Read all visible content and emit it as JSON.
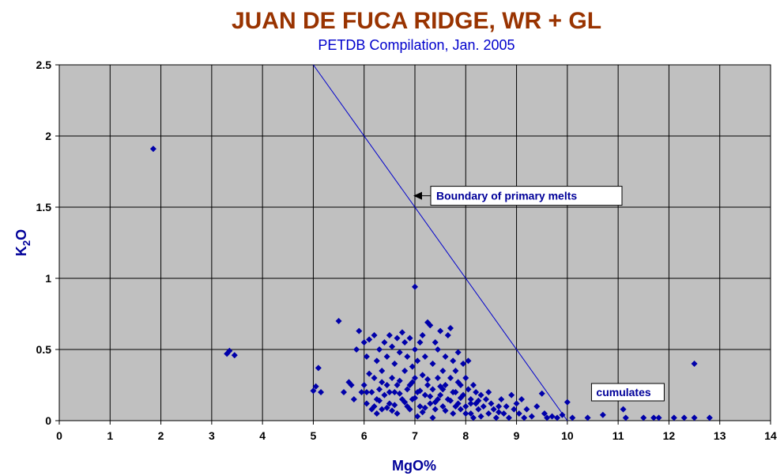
{
  "chart_data": {
    "type": "scatter",
    "title": "JUAN DE FUCA RIDGE, WR + GL",
    "subtitle": "PETDB Compilation, Jan. 2005",
    "xlabel": "MgO%",
    "ylabel_main": "K",
    "ylabel_sub": "2",
    "ylabel_tail": "O",
    "xlim": [
      0,
      14
    ],
    "ylim": [
      0,
      2.5
    ],
    "xticks": [
      "0",
      "1",
      "2",
      "3",
      "4",
      "5",
      "6",
      "7",
      "8",
      "9",
      "10",
      "11",
      "12",
      "13",
      "14"
    ],
    "yticks": [
      "0",
      "0.5",
      "1",
      "1.5",
      "2",
      "2.5"
    ],
    "grid": true,
    "colors": {
      "plot_bg": "#c0c0c0",
      "marker": "#0000aa",
      "line": "#0000cc",
      "title": "#993300"
    },
    "boundary_line": {
      "x": [
        5,
        10
      ],
      "y": [
        2.5,
        0
      ]
    },
    "annotations": [
      {
        "text": "Boundary of primary melts",
        "x": 7.0,
        "y": 1.58,
        "arrow": true
      },
      {
        "text": "cumulates",
        "x": 10.6,
        "y": 0.2,
        "arrow": false
      }
    ],
    "series": [
      {
        "points": [
          [
            1.85,
            1.91
          ],
          [
            3.3,
            0.47
          ],
          [
            3.35,
            0.49
          ],
          [
            3.45,
            0.46
          ],
          [
            5.0,
            0.21
          ],
          [
            5.05,
            0.24
          ],
          [
            5.1,
            0.37
          ],
          [
            5.15,
            0.2
          ],
          [
            5.5,
            0.7
          ],
          [
            5.6,
            0.2
          ],
          [
            5.7,
            0.27
          ],
          [
            5.75,
            0.25
          ],
          [
            5.8,
            0.15
          ],
          [
            5.85,
            0.5
          ],
          [
            5.9,
            0.63
          ],
          [
            5.95,
            0.2
          ],
          [
            6.0,
            0.55
          ],
          [
            6.0,
            0.25
          ],
          [
            6.05,
            0.12
          ],
          [
            6.05,
            0.45
          ],
          [
            6.1,
            0.57
          ],
          [
            6.1,
            0.33
          ],
          [
            6.15,
            0.2
          ],
          [
            6.2,
            0.6
          ],
          [
            6.2,
            0.3
          ],
          [
            6.25,
            0.42
          ],
          [
            6.25,
            0.15
          ],
          [
            6.3,
            0.5
          ],
          [
            6.3,
            0.22
          ],
          [
            6.35,
            0.35
          ],
          [
            6.35,
            0.08
          ],
          [
            6.4,
            0.55
          ],
          [
            6.4,
            0.18
          ],
          [
            6.45,
            0.45
          ],
          [
            6.45,
            0.25
          ],
          [
            6.5,
            0.6
          ],
          [
            6.5,
            0.12
          ],
          [
            6.55,
            0.3
          ],
          [
            6.55,
            0.52
          ],
          [
            6.6,
            0.2
          ],
          [
            6.6,
            0.4
          ],
          [
            6.65,
            0.58
          ],
          [
            6.65,
            0.05
          ],
          [
            6.7,
            0.28
          ],
          [
            6.7,
            0.48
          ],
          [
            6.75,
            0.15
          ],
          [
            6.75,
            0.62
          ],
          [
            6.8,
            0.35
          ],
          [
            6.8,
            0.55
          ],
          [
            6.85,
            0.1
          ],
          [
            6.85,
            0.45
          ],
          [
            6.9,
            0.25
          ],
          [
            6.9,
            0.58
          ],
          [
            6.95,
            0.38
          ],
          [
            6.95,
            0.15
          ],
          [
            7.0,
            0.94
          ],
          [
            7.0,
            0.5
          ],
          [
            7.0,
            0.3
          ],
          [
            7.05,
            0.2
          ],
          [
            7.05,
            0.42
          ],
          [
            7.1,
            0.55
          ],
          [
            7.1,
            0.1
          ],
          [
            7.15,
            0.32
          ],
          [
            7.15,
            0.6
          ],
          [
            7.2,
            0.18
          ],
          [
            7.2,
            0.45
          ],
          [
            7.25,
            0.69
          ],
          [
            7.25,
            0.25
          ],
          [
            7.3,
            0.67
          ],
          [
            7.3,
            0.12
          ],
          [
            7.35,
            0.4
          ],
          [
            7.35,
            0.22
          ],
          [
            7.4,
            0.55
          ],
          [
            7.4,
            0.08
          ],
          [
            7.45,
            0.3
          ],
          [
            7.45,
            0.5
          ],
          [
            7.5,
            0.18
          ],
          [
            7.5,
            0.63
          ],
          [
            7.55,
            0.35
          ],
          [
            7.55,
            0.1
          ],
          [
            7.6,
            0.45
          ],
          [
            7.6,
            0.25
          ],
          [
            7.65,
            0.6
          ],
          [
            7.65,
            0.15
          ],
          [
            7.7,
            0.65
          ],
          [
            7.7,
            0.3
          ],
          [
            7.75,
            0.05
          ],
          [
            7.75,
            0.42
          ],
          [
            7.8,
            0.2
          ],
          [
            7.8,
            0.35
          ],
          [
            7.85,
            0.12
          ],
          [
            7.85,
            0.48
          ],
          [
            7.9,
            0.25
          ],
          [
            7.9,
            0.08
          ],
          [
            7.95,
            0.4
          ],
          [
            7.95,
            0.18
          ],
          [
            8.0,
            0.3
          ],
          [
            8.0,
            0.1
          ],
          [
            8.05,
            0.22
          ],
          [
            8.05,
            0.42
          ],
          [
            8.1,
            0.15
          ],
          [
            8.1,
            0.05
          ],
          [
            8.15,
            0.25
          ],
          [
            8.2,
            0.12
          ],
          [
            8.2,
            0.2
          ],
          [
            8.25,
            0.08
          ],
          [
            8.3,
            0.18
          ],
          [
            8.3,
            0.03
          ],
          [
            8.35,
            0.1
          ],
          [
            8.4,
            0.15
          ],
          [
            8.45,
            0.05
          ],
          [
            8.5,
            0.12
          ],
          [
            8.55,
            0.08
          ],
          [
            8.6,
            0.02
          ],
          [
            8.65,
            0.1
          ],
          [
            8.7,
            0.15
          ],
          [
            8.75,
            0.05
          ],
          [
            8.8,
            0.1
          ],
          [
            8.85,
            0.02
          ],
          [
            8.9,
            0.18
          ],
          [
            8.95,
            0.08
          ],
          [
            9.0,
            0.12
          ],
          [
            9.05,
            0.05
          ],
          [
            9.1,
            0.15
          ],
          [
            9.15,
            0.02
          ],
          [
            9.2,
            0.08
          ],
          [
            9.3,
            0.03
          ],
          [
            9.4,
            0.1
          ],
          [
            9.5,
            0.19
          ],
          [
            9.55,
            0.05
          ],
          [
            9.6,
            0.02
          ],
          [
            9.7,
            0.03
          ],
          [
            9.8,
            0.02
          ],
          [
            9.9,
            0.04
          ],
          [
            10.0,
            0.13
          ],
          [
            10.1,
            0.02
          ],
          [
            10.4,
            0.02
          ],
          [
            10.7,
            0.04
          ],
          [
            11.1,
            0.08
          ],
          [
            11.15,
            0.02
          ],
          [
            11.5,
            0.02
          ],
          [
            11.7,
            0.02
          ],
          [
            11.8,
            0.02
          ],
          [
            12.1,
            0.02
          ],
          [
            12.3,
            0.02
          ],
          [
            12.5,
            0.4
          ],
          [
            12.5,
            0.02
          ],
          [
            12.8,
            0.02
          ],
          [
            6.2,
            0.1
          ],
          [
            6.3,
            0.14
          ],
          [
            6.45,
            0.09
          ],
          [
            6.5,
            0.2
          ],
          [
            6.6,
            0.11
          ],
          [
            6.7,
            0.19
          ],
          [
            6.8,
            0.13
          ],
          [
            6.9,
            0.08
          ],
          [
            7.0,
            0.16
          ],
          [
            7.1,
            0.21
          ],
          [
            7.2,
            0.09
          ],
          [
            7.3,
            0.17
          ],
          [
            7.4,
            0.13
          ],
          [
            7.5,
            0.24
          ],
          [
            7.6,
            0.07
          ],
          [
            7.7,
            0.14
          ],
          [
            7.8,
            0.1
          ],
          [
            7.9,
            0.16
          ],
          [
            8.0,
            0.05
          ],
          [
            8.1,
            0.12
          ],
          [
            6.25,
            0.05
          ],
          [
            6.55,
            0.07
          ],
          [
            6.85,
            0.22
          ],
          [
            7.15,
            0.06
          ],
          [
            7.45,
            0.15
          ],
          [
            7.75,
            0.2
          ],
          [
            8.25,
            0.14
          ],
          [
            8.45,
            0.2
          ],
          [
            8.65,
            0.06
          ],
          [
            8.15,
            0.02
          ],
          [
            6.35,
            0.27
          ],
          [
            6.65,
            0.25
          ],
          [
            6.95,
            0.27
          ],
          [
            7.25,
            0.29
          ],
          [
            7.55,
            0.22
          ],
          [
            7.85,
            0.27
          ],
          [
            6.05,
            0.2
          ],
          [
            6.15,
            0.08
          ],
          [
            7.35,
            0.02
          ],
          [
            7.05,
            0.03
          ]
        ]
      }
    ]
  }
}
